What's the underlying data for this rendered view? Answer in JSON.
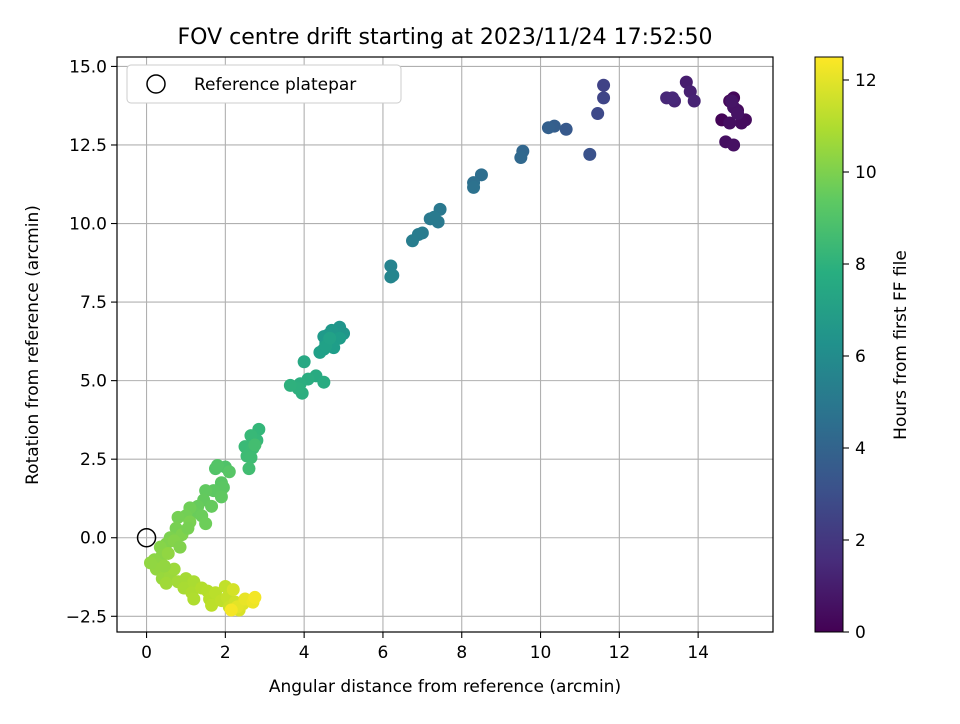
{
  "chart_data": {
    "type": "scatter",
    "title": "FOV centre drift starting at 2023/11/24 17:52:50",
    "xlabel": "Angular distance from reference (arcmin)",
    "ylabel": "Rotation from reference (arcmin)",
    "xlim": [
      -0.75,
      15.9
    ],
    "ylim": [
      -3.0,
      15.3
    ],
    "xticks": [
      0,
      2,
      4,
      6,
      8,
      10,
      12,
      14
    ],
    "xtick_labels": [
      "0",
      "2",
      "4",
      "6",
      "8",
      "10",
      "12",
      "14"
    ],
    "yticks": [
      -2.5,
      0.0,
      2.5,
      5.0,
      7.5,
      10.0,
      12.5,
      15.0
    ],
    "ytick_labels": [
      "−2.5",
      "0.0",
      "2.5",
      "5.0",
      "7.5",
      "10.0",
      "12.5",
      "15.0"
    ],
    "grid": true,
    "legend": {
      "placement": "top-left",
      "entries": [
        "Reference platepar"
      ]
    },
    "reference_point": {
      "x": 0,
      "y": 0,
      "label": "Reference platepar"
    },
    "colorbar": {
      "label": "Hours from first FF file",
      "colormap": "viridis",
      "range": [
        0,
        12.5
      ],
      "ticks": [
        0,
        2,
        4,
        6,
        8,
        10,
        12
      ],
      "tick_labels": [
        "0",
        "2",
        "4",
        "6",
        "8",
        "10",
        "12"
      ]
    },
    "points": [
      {
        "x": 14.6,
        "y": 13.3,
        "t": 0.1
      },
      {
        "x": 14.8,
        "y": 13.9,
        "t": 0.2
      },
      {
        "x": 14.9,
        "y": 14.0,
        "t": 0.25
      },
      {
        "x": 15.0,
        "y": 13.6,
        "t": 0.3
      },
      {
        "x": 15.2,
        "y": 13.3,
        "t": 0.35
      },
      {
        "x": 15.1,
        "y": 13.2,
        "t": 0.4
      },
      {
        "x": 14.8,
        "y": 13.2,
        "t": 0.45
      },
      {
        "x": 14.7,
        "y": 12.6,
        "t": 0.5
      },
      {
        "x": 14.9,
        "y": 12.5,
        "t": 0.55
      },
      {
        "x": 14.9,
        "y": 13.7,
        "t": 0.6
      },
      {
        "x": 15.0,
        "y": 13.5,
        "t": 0.65
      },
      {
        "x": 14.85,
        "y": 13.9,
        "t": 0.7
      },
      {
        "x": 13.7,
        "y": 14.5,
        "t": 1.0
      },
      {
        "x": 13.8,
        "y": 14.2,
        "t": 1.1
      },
      {
        "x": 13.9,
        "y": 13.9,
        "t": 1.2
      },
      {
        "x": 13.4,
        "y": 13.9,
        "t": 1.3
      },
      {
        "x": 13.2,
        "y": 14.0,
        "t": 1.4
      },
      {
        "x": 13.35,
        "y": 14.0,
        "t": 1.45
      },
      {
        "x": 11.6,
        "y": 14.4,
        "t": 2.5
      },
      {
        "x": 11.6,
        "y": 14.0,
        "t": 2.6
      },
      {
        "x": 11.45,
        "y": 13.5,
        "t": 2.8
      },
      {
        "x": 11.25,
        "y": 12.2,
        "t": 3.2
      },
      {
        "x": 10.65,
        "y": 13.0,
        "t": 3.5
      },
      {
        "x": 10.35,
        "y": 13.1,
        "t": 3.7
      },
      {
        "x": 10.2,
        "y": 13.05,
        "t": 3.8
      },
      {
        "x": 9.55,
        "y": 12.3,
        "t": 4.1
      },
      {
        "x": 9.5,
        "y": 12.1,
        "t": 4.2
      },
      {
        "x": 8.5,
        "y": 11.55,
        "t": 4.5
      },
      {
        "x": 8.3,
        "y": 11.3,
        "t": 4.6
      },
      {
        "x": 8.3,
        "y": 11.15,
        "t": 4.7
      },
      {
        "x": 7.45,
        "y": 10.45,
        "t": 5.0
      },
      {
        "x": 7.4,
        "y": 10.05,
        "t": 5.05
      },
      {
        "x": 7.2,
        "y": 10.15,
        "t": 5.1
      },
      {
        "x": 7.3,
        "y": 10.2,
        "t": 5.12
      },
      {
        "x": 7.0,
        "y": 9.7,
        "t": 5.2
      },
      {
        "x": 6.9,
        "y": 9.65,
        "t": 5.25
      },
      {
        "x": 6.75,
        "y": 9.45,
        "t": 5.3
      },
      {
        "x": 6.2,
        "y": 8.65,
        "t": 5.6
      },
      {
        "x": 6.25,
        "y": 8.35,
        "t": 5.65
      },
      {
        "x": 6.2,
        "y": 8.3,
        "t": 5.7
      },
      {
        "x": 4.9,
        "y": 6.7,
        "t": 6.5
      },
      {
        "x": 5.0,
        "y": 6.5,
        "t": 6.55
      },
      {
        "x": 4.8,
        "y": 6.5,
        "t": 6.6
      },
      {
        "x": 4.7,
        "y": 6.6,
        "t": 6.65
      },
      {
        "x": 4.6,
        "y": 6.45,
        "t": 6.7
      },
      {
        "x": 4.5,
        "y": 6.4,
        "t": 6.75
      },
      {
        "x": 4.55,
        "y": 6.2,
        "t": 6.8
      },
      {
        "x": 4.7,
        "y": 6.25,
        "t": 6.85
      },
      {
        "x": 4.9,
        "y": 6.35,
        "t": 6.9
      },
      {
        "x": 4.75,
        "y": 6.05,
        "t": 6.95
      },
      {
        "x": 4.5,
        "y": 6.0,
        "t": 7.0
      },
      {
        "x": 4.4,
        "y": 5.9,
        "t": 7.05
      },
      {
        "x": 4.55,
        "y": 6.1,
        "t": 7.1
      },
      {
        "x": 4.65,
        "y": 6.35,
        "t": 7.15
      },
      {
        "x": 4.0,
        "y": 5.6,
        "t": 7.5
      },
      {
        "x": 4.3,
        "y": 5.15,
        "t": 7.6
      },
      {
        "x": 4.1,
        "y": 5.05,
        "t": 7.7
      },
      {
        "x": 3.9,
        "y": 4.9,
        "t": 7.8
      },
      {
        "x": 3.95,
        "y": 4.6,
        "t": 7.85
      },
      {
        "x": 3.85,
        "y": 4.75,
        "t": 7.9
      },
      {
        "x": 3.65,
        "y": 4.85,
        "t": 7.95
      },
      {
        "x": 4.5,
        "y": 4.95,
        "t": 7.65
      },
      {
        "x": 2.85,
        "y": 3.45,
        "t": 8.3
      },
      {
        "x": 2.8,
        "y": 3.1,
        "t": 8.35
      },
      {
        "x": 2.65,
        "y": 3.25,
        "t": 8.4
      },
      {
        "x": 2.5,
        "y": 2.9,
        "t": 8.45
      },
      {
        "x": 2.7,
        "y": 2.85,
        "t": 8.5
      },
      {
        "x": 2.55,
        "y": 2.6,
        "t": 8.55
      },
      {
        "x": 2.65,
        "y": 2.55,
        "t": 8.6
      },
      {
        "x": 2.6,
        "y": 2.2,
        "t": 8.65
      },
      {
        "x": 2.75,
        "y": 2.95,
        "t": 8.7
      },
      {
        "x": 2.0,
        "y": 2.25,
        "t": 9.0
      },
      {
        "x": 1.75,
        "y": 2.2,
        "t": 9.05
      },
      {
        "x": 1.8,
        "y": 2.3,
        "t": 9.1
      },
      {
        "x": 2.1,
        "y": 2.1,
        "t": 9.15
      },
      {
        "x": 1.9,
        "y": 1.75,
        "t": 9.2
      },
      {
        "x": 1.95,
        "y": 1.6,
        "t": 9.25
      },
      {
        "x": 1.7,
        "y": 1.5,
        "t": 9.3
      },
      {
        "x": 1.9,
        "y": 1.3,
        "t": 9.35
      },
      {
        "x": 1.5,
        "y": 1.5,
        "t": 9.4
      },
      {
        "x": 1.45,
        "y": 1.2,
        "t": 9.45
      },
      {
        "x": 1.65,
        "y": 1.0,
        "t": 9.5
      },
      {
        "x": 1.3,
        "y": 1.0,
        "t": 9.55
      },
      {
        "x": 1.2,
        "y": 0.8,
        "t": 9.6
      },
      {
        "x": 1.4,
        "y": 0.7,
        "t": 9.65
      },
      {
        "x": 1.5,
        "y": 0.45,
        "t": 9.7
      },
      {
        "x": 1.1,
        "y": 0.95,
        "t": 9.75
      },
      {
        "x": 1.0,
        "y": 0.7,
        "t": 9.8
      },
      {
        "x": 0.8,
        "y": 0.65,
        "t": 9.85
      },
      {
        "x": 0.75,
        "y": 0.3,
        "t": 9.9
      },
      {
        "x": 1.1,
        "y": 0.5,
        "t": 9.95
      },
      {
        "x": 0.6,
        "y": 0.0,
        "t": 10.0
      },
      {
        "x": 0.9,
        "y": 0.1,
        "t": 10.05
      },
      {
        "x": 0.5,
        "y": -0.2,
        "t": 10.1
      },
      {
        "x": 0.7,
        "y": -0.1,
        "t": 10.15
      },
      {
        "x": 0.35,
        "y": -0.3,
        "t": 10.2
      },
      {
        "x": 0.4,
        "y": -0.55,
        "t": 10.25
      },
      {
        "x": 0.2,
        "y": -0.7,
        "t": 10.3
      },
      {
        "x": 0.3,
        "y": -0.85,
        "t": 10.35
      },
      {
        "x": 0.55,
        "y": -0.5,
        "t": 10.4
      },
      {
        "x": 0.25,
        "y": -1.0,
        "t": 10.45
      },
      {
        "x": 0.5,
        "y": -1.1,
        "t": 10.5
      },
      {
        "x": 0.4,
        "y": -1.3,
        "t": 10.55
      },
      {
        "x": 0.6,
        "y": -1.2,
        "t": 10.6
      },
      {
        "x": 0.7,
        "y": -1.0,
        "t": 10.65
      },
      {
        "x": 0.5,
        "y": -1.45,
        "t": 10.7
      },
      {
        "x": 0.8,
        "y": -1.4,
        "t": 10.75
      },
      {
        "x": 1.0,
        "y": -1.3,
        "t": 10.8
      },
      {
        "x": 0.95,
        "y": -1.6,
        "t": 10.85
      },
      {
        "x": 1.2,
        "y": -1.4,
        "t": 10.9
      },
      {
        "x": 1.15,
        "y": -1.75,
        "t": 10.95
      },
      {
        "x": 1.2,
        "y": -1.95,
        "t": 11.0
      },
      {
        "x": 1.4,
        "y": -1.6,
        "t": 11.05
      },
      {
        "x": 1.55,
        "y": -1.7,
        "t": 11.1
      },
      {
        "x": 1.6,
        "y": -1.95,
        "t": 11.15
      },
      {
        "x": 1.75,
        "y": -1.75,
        "t": 11.2
      },
      {
        "x": 1.65,
        "y": -2.15,
        "t": 11.25
      },
      {
        "x": 1.9,
        "y": -2.0,
        "t": 11.3
      },
      {
        "x": 2.0,
        "y": -1.55,
        "t": 11.35
      },
      {
        "x": 2.05,
        "y": -1.9,
        "t": 11.4
      },
      {
        "x": 2.1,
        "y": -2.2,
        "t": 11.5
      },
      {
        "x": 2.25,
        "y": -2.05,
        "t": 11.6
      },
      {
        "x": 2.2,
        "y": -1.65,
        "t": 11.7
      },
      {
        "x": 2.35,
        "y": -2.3,
        "t": 11.8
      },
      {
        "x": 2.45,
        "y": -2.1,
        "t": 11.9
      },
      {
        "x": 2.3,
        "y": -2.2,
        "t": 12.0
      },
      {
        "x": 2.5,
        "y": -1.95,
        "t": 12.1
      },
      {
        "x": 2.7,
        "y": -2.05,
        "t": 12.2
      },
      {
        "x": 2.75,
        "y": -1.9,
        "t": 12.3
      },
      {
        "x": 2.15,
        "y": -2.3,
        "t": 12.35
      },
      {
        "x": 0.1,
        "y": -0.8,
        "t": 10.4
      },
      {
        "x": 0.45,
        "y": -0.9,
        "t": 10.45
      },
      {
        "x": 0.85,
        "y": -0.3,
        "t": 10.1
      },
      {
        "x": 1.05,
        "y": 0.3,
        "t": 9.9
      }
    ]
  }
}
